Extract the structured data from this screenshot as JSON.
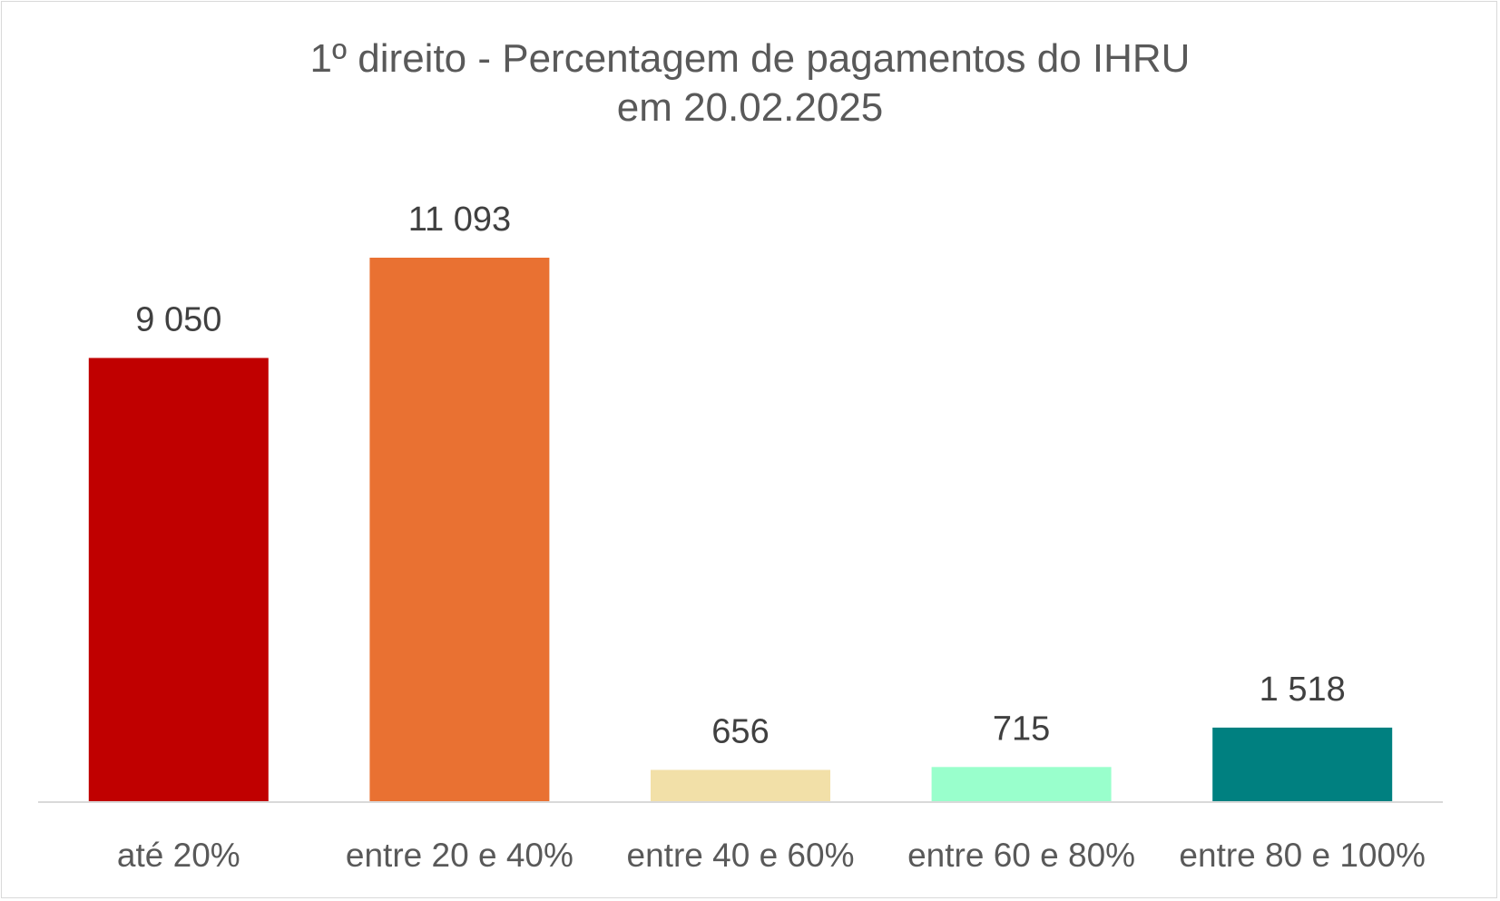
{
  "chart_data": {
    "type": "bar",
    "title_lines": [
      "1º direito - Percentagem de pagamentos do IHRU",
      "em 20.02.2025"
    ],
    "categories": [
      "até 20%",
      "entre 20 e 40%",
      "entre 40 e 60%",
      "entre 60 e 80%",
      "entre 80 e 100%"
    ],
    "values": [
      9050,
      11093,
      656,
      715,
      1518
    ],
    "value_labels": [
      "9 050",
      "11 093",
      "656",
      "715",
      "1 518"
    ],
    "colors": [
      "#C00000",
      "#E97132",
      "#F2E0A8",
      "#99FFCC",
      "#008080"
    ],
    "ylim": [
      0,
      11093
    ],
    "grid": false,
    "legend": "none"
  }
}
